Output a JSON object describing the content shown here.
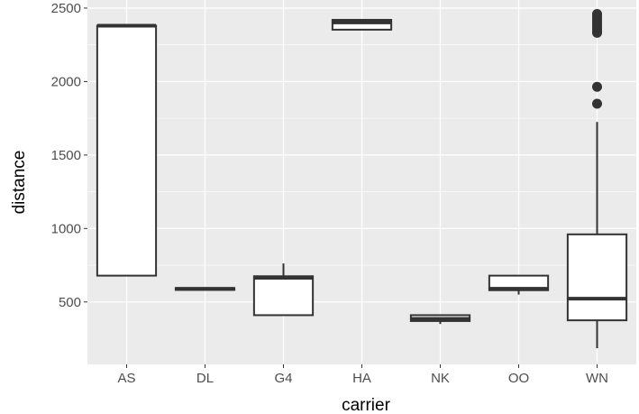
{
  "chart_data": {
    "type": "boxplot",
    "xlabel": "carrier",
    "ylabel": "distance",
    "categories": [
      "AS",
      "DL",
      "G4",
      "HA",
      "NK",
      "OO",
      "WN"
    ],
    "ylim": [
      75,
      2555
    ],
    "y_ticks": [
      500,
      1000,
      1500,
      2000,
      2500
    ],
    "y_tick_labels": [
      "500",
      "1000",
      "1500",
      "2000",
      "2500"
    ],
    "grid": true,
    "boxes": [
      {
        "category": "AS",
        "min": 679,
        "q1": 679,
        "median": 2380,
        "q3": 2380,
        "max": 2380,
        "outliers": []
      },
      {
        "category": "DL",
        "min": 582,
        "q1": 582,
        "median": 589,
        "q3": 595,
        "max": 595,
        "outliers": []
      },
      {
        "category": "G4",
        "min": 410,
        "q1": 410,
        "median": 664,
        "q3": 675,
        "max": 762,
        "outliers": []
      },
      {
        "category": "HA",
        "min": 2353,
        "q1": 2353,
        "median": 2402,
        "q3": 2420,
        "max": 2420,
        "outliers": []
      },
      {
        "category": "NK",
        "min": 350,
        "q1": 370,
        "median": 385,
        "q3": 410,
        "max": 410,
        "outliers": []
      },
      {
        "category": "OO",
        "min": 550,
        "q1": 580,
        "median": 590,
        "q3": 679,
        "max": 679,
        "outliers": []
      },
      {
        "category": "WN",
        "min": 185,
        "q1": 375,
        "median": 522,
        "q3": 960,
        "max": 1725,
        "outliers": [
          1849,
          1964,
          2332,
          2345,
          2358,
          2372,
          2385,
          2400,
          2415,
          2430,
          2445,
          2460
        ]
      }
    ],
    "colors": {
      "panel_background": "#ebebeb",
      "grid_line": "#ffffff",
      "box_fill": "#ffffff",
      "box_line": "#333333",
      "tick_text": "#4d4d4d",
      "axis_title": "#000000"
    }
  }
}
